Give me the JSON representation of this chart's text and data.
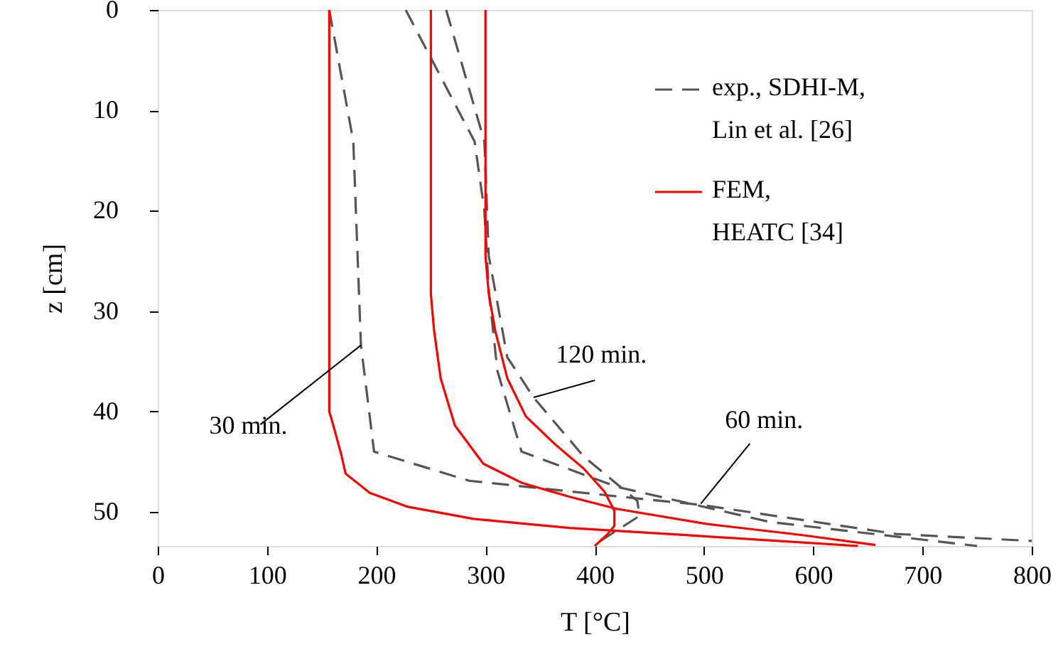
{
  "chart_data": {
    "type": "line",
    "xlabel": "T  [°C]",
    "ylabel": "z  [cm]",
    "xlim": [
      0,
      800
    ],
    "xticks": [
      0,
      100,
      200,
      300,
      400,
      500,
      600,
      700,
      800
    ],
    "ylim": [
      53.4,
      0
    ],
    "yticks": [
      0,
      10,
      20,
      30,
      40,
      50
    ],
    "grid": false,
    "legend": "top right",
    "marker": "none",
    "series": [
      {
        "name": "exp., SDHI-M,\nLin et al.  [26]",
        "color": "#555555",
        "line_style": "dashed",
        "x": [
          157,
          179,
          186,
          198,
          285,
          442,
          497,
          676,
          800
        ],
        "values": [
          0,
          13.1,
          33.4,
          44,
          46.9,
          48.7,
          49.3,
          52.2,
          52.9
        ]
      },
      {
        "color": "#555555",
        "line_style": "dashed",
        "x": [
          227,
          290,
          299,
          303,
          311,
          333,
          420,
          560,
          750
        ],
        "values": [
          0,
          13.1,
          20,
          28,
          36,
          44,
          47.5,
          51,
          53.4
        ]
      },
      {
        "color": "#555555",
        "line_style": "dashed",
        "x": [
          264,
          299,
          303,
          320,
          344,
          390,
          439,
          441,
          398
        ],
        "values": [
          0,
          13.1,
          24.5,
          34.6,
          38.6,
          44.5,
          48.9,
          50.4,
          53.4
        ]
      },
      {
        "name": "FEM,\nHEATC [34]",
        "color": "#ff0000",
        "line_style": "solid",
        "x": [
          157,
          157,
          161,
          168,
          172,
          194,
          229,
          289,
          377,
          481,
          641
        ],
        "values": [
          0,
          40,
          41.5,
          44.3,
          46.2,
          48.1,
          49.5,
          50.7,
          51.6,
          52.3,
          53.4
        ]
      },
      {
        "color": "#ff0000",
        "line_style": "solid",
        "x": [
          250,
          250,
          253,
          259,
          272,
          298,
          333,
          377,
          420,
          502,
          589,
          657
        ],
        "values": [
          0,
          28.3,
          32,
          36.7,
          41.4,
          45.2,
          47.1,
          48.5,
          49.7,
          51.2,
          52.3,
          53.3
        ]
      },
      {
        "color": "#ff0000",
        "line_style": "solid",
        "x": [
          300,
          300,
          303,
          309,
          320,
          337,
          364,
          390,
          409,
          418,
          418,
          411,
          400
        ],
        "values": [
          0,
          24.5,
          28.3,
          32,
          36.7,
          40.5,
          43.3,
          45.7,
          48,
          49.9,
          51.4,
          52.3,
          53.4
        ]
      }
    ],
    "annotations": [
      {
        "text": "30 min.",
        "x": 186,
        "y": 33.4
      },
      {
        "text": "120 min.",
        "x": 344,
        "y": 38.6
      },
      {
        "text": "60 min.",
        "x": 497,
        "y": 49.2
      }
    ]
  }
}
